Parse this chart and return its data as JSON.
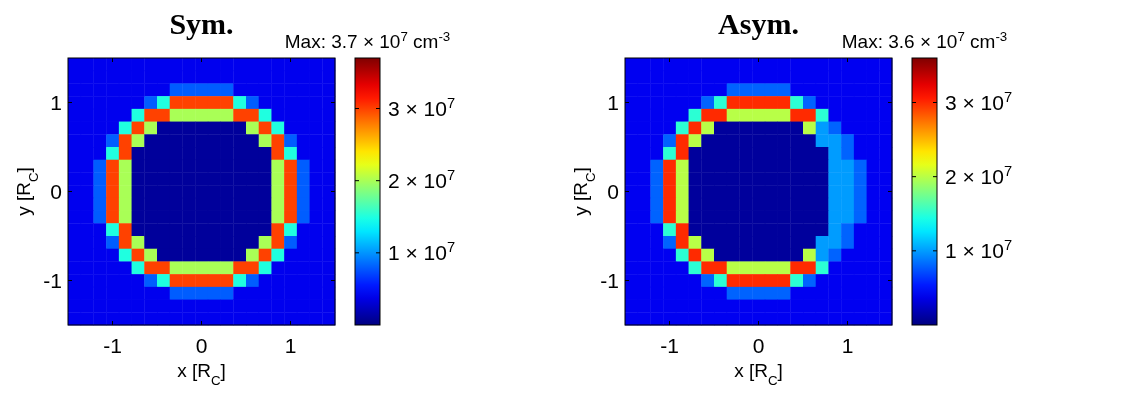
{
  "chart_data": [
    {
      "type": "heatmap",
      "title": "Sym.",
      "xlabel": "x [R$_{C}$]",
      "ylabel": "y [R$_{C}$]",
      "annotations": [
        "Max: 3.7 × 10$^{7}$ cm$^{-3}$"
      ],
      "categories": [
        null,
        null,
        null,
        "-1",
        null,
        null,
        null,
        null,
        null,
        null,
        "0",
        null,
        null,
        null,
        null,
        null,
        null,
        "1",
        null,
        null,
        null
      ],
      "y_categories": [
        null,
        null,
        null,
        "1",
        null,
        null,
        null,
        null,
        null,
        null,
        "0",
        null,
        null,
        null,
        null,
        null,
        null,
        "-1",
        null,
        null,
        null
      ],
      "clim": [
        0,
        37000000.0
      ],
      "cticks": [
        {
          "value": 10000000.0,
          "label": "1 × 10$^{7}$"
        },
        {
          "value": 20000000.0,
          "label": "2 × 10$^{7}$"
        },
        {
          "value": 30000000.0,
          "label": "3 × 10$^{7}$"
        }
      ],
      "cells": [
        [
          4000000.0,
          4000000.0,
          4000000.0,
          4000000.0,
          4000000.0,
          4000000.0,
          4000000.0,
          4000000.0,
          4000000.0,
          4000000.0,
          4000000.0,
          4000000.0,
          4000000.0,
          4000000.0,
          4000000.0,
          4000000.0,
          4000000.0,
          4000000.0,
          4000000.0,
          4000000.0,
          4000000.0
        ],
        [
          4000000.0,
          4000000.0,
          4000000.0,
          4000000.0,
          4000000.0,
          4000000.0,
          4000000.0,
          4000000.0,
          4000000.0,
          4000000.0,
          4000000.0,
          4000000.0,
          4000000.0,
          4000000.0,
          4000000.0,
          4000000.0,
          4000000.0,
          4000000.0,
          4000000.0,
          4000000.0,
          4000000.0
        ],
        [
          4000000.0,
          4000000.0,
          4000000.0,
          4000000.0,
          4000000.0,
          4000000.0,
          4000000.0,
          4000000.0,
          8000000.0,
          8000000.0,
          8000000.0,
          8000000.0,
          8000000.0,
          4000000.0,
          4000000.0,
          4000000.0,
          4000000.0,
          4000000.0,
          4000000.0,
          4000000.0,
          4000000.0
        ],
        [
          4000000.0,
          4000000.0,
          4000000.0,
          4000000.0,
          4000000.0,
          4000000.0,
          8000000.0,
          15000000.0,
          30000000.0,
          30000000.0,
          30000000.0,
          30000000.0,
          30000000.0,
          15000000.0,
          8000000.0,
          4000000.0,
          4000000.0,
          4000000.0,
          4000000.0,
          4000000.0,
          4000000.0
        ],
        [
          4000000.0,
          4000000.0,
          4000000.0,
          4000000.0,
          4000000.0,
          15000000.0,
          30000000.0,
          30000000.0,
          20000000.0,
          20000000.0,
          20000000.0,
          20000000.0,
          20000000.0,
          30000000.0,
          30000000.0,
          15000000.0,
          4000000.0,
          4000000.0,
          4000000.0,
          4000000.0,
          4000000.0
        ],
        [
          4000000.0,
          4000000.0,
          4000000.0,
          4000000.0,
          15000000.0,
          30000000.0,
          20000000.0,
          1000000.0,
          1000000.0,
          1000000.0,
          1000000.0,
          1000000.0,
          1000000.0,
          1000000.0,
          20000000.0,
          30000000.0,
          15000000.0,
          4000000.0,
          4000000.0,
          4000000.0,
          4000000.0
        ],
        [
          4000000.0,
          4000000.0,
          4000000.0,
          8000000.0,
          30000000.0,
          20000000.0,
          1000000.0,
          1000000.0,
          1000000.0,
          1000000.0,
          1000000.0,
          1000000.0,
          1000000.0,
          1000000.0,
          1000000.0,
          20000000.0,
          30000000.0,
          8000000.0,
          4000000.0,
          4000000.0,
          4000000.0
        ],
        [
          4000000.0,
          4000000.0,
          4000000.0,
          15000000.0,
          30000000.0,
          1000000.0,
          1000000.0,
          1000000.0,
          1000000.0,
          1000000.0,
          1000000.0,
          1000000.0,
          1000000.0,
          1000000.0,
          1000000.0,
          1000000.0,
          30000000.0,
          15000000.0,
          4000000.0,
          4000000.0,
          4000000.0
        ],
        [
          4000000.0,
          4000000.0,
          8000000.0,
          30000000.0,
          20000000.0,
          1000000.0,
          1000000.0,
          1000000.0,
          1000000.0,
          1000000.0,
          1000000.0,
          1000000.0,
          1000000.0,
          1000000.0,
          1000000.0,
          1000000.0,
          20000000.0,
          30000000.0,
          8000000.0,
          4000000.0,
          4000000.0
        ],
        [
          4000000.0,
          4000000.0,
          8000000.0,
          30000000.0,
          20000000.0,
          1000000.0,
          1000000.0,
          1000000.0,
          1000000.0,
          1000000.0,
          1000000.0,
          1000000.0,
          1000000.0,
          1000000.0,
          1000000.0,
          1000000.0,
          20000000.0,
          30000000.0,
          8000000.0,
          4000000.0,
          4000000.0
        ],
        [
          4000000.0,
          4000000.0,
          8000000.0,
          30000000.0,
          20000000.0,
          1000000.0,
          1000000.0,
          1000000.0,
          1000000.0,
          1000000.0,
          1000000.0,
          1000000.0,
          1000000.0,
          1000000.0,
          1000000.0,
          1000000.0,
          20000000.0,
          30000000.0,
          8000000.0,
          4000000.0,
          4000000.0
        ],
        [
          4000000.0,
          4000000.0,
          8000000.0,
          30000000.0,
          20000000.0,
          1000000.0,
          1000000.0,
          1000000.0,
          1000000.0,
          1000000.0,
          1000000.0,
          1000000.0,
          1000000.0,
          1000000.0,
          1000000.0,
          1000000.0,
          20000000.0,
          30000000.0,
          8000000.0,
          4000000.0,
          4000000.0
        ],
        [
          4000000.0,
          4000000.0,
          8000000.0,
          30000000.0,
          20000000.0,
          1000000.0,
          1000000.0,
          1000000.0,
          1000000.0,
          1000000.0,
          1000000.0,
          1000000.0,
          1000000.0,
          1000000.0,
          1000000.0,
          1000000.0,
          20000000.0,
          30000000.0,
          8000000.0,
          4000000.0,
          4000000.0
        ],
        [
          4000000.0,
          4000000.0,
          4000000.0,
          15000000.0,
          30000000.0,
          1000000.0,
          1000000.0,
          1000000.0,
          1000000.0,
          1000000.0,
          1000000.0,
          1000000.0,
          1000000.0,
          1000000.0,
          1000000.0,
          1000000.0,
          30000000.0,
          15000000.0,
          4000000.0,
          4000000.0,
          4000000.0
        ],
        [
          4000000.0,
          4000000.0,
          4000000.0,
          8000000.0,
          30000000.0,
          20000000.0,
          1000000.0,
          1000000.0,
          1000000.0,
          1000000.0,
          1000000.0,
          1000000.0,
          1000000.0,
          1000000.0,
          1000000.0,
          20000000.0,
          30000000.0,
          8000000.0,
          4000000.0,
          4000000.0,
          4000000.0
        ],
        [
          4000000.0,
          4000000.0,
          4000000.0,
          4000000.0,
          15000000.0,
          30000000.0,
          20000000.0,
          1000000.0,
          1000000.0,
          1000000.0,
          1000000.0,
          1000000.0,
          1000000.0,
          1000000.0,
          20000000.0,
          30000000.0,
          15000000.0,
          4000000.0,
          4000000.0,
          4000000.0,
          4000000.0
        ],
        [
          4000000.0,
          4000000.0,
          4000000.0,
          4000000.0,
          4000000.0,
          15000000.0,
          30000000.0,
          30000000.0,
          20000000.0,
          20000000.0,
          20000000.0,
          20000000.0,
          20000000.0,
          30000000.0,
          30000000.0,
          15000000.0,
          4000000.0,
          4000000.0,
          4000000.0,
          4000000.0,
          4000000.0
        ],
        [
          4000000.0,
          4000000.0,
          4000000.0,
          4000000.0,
          4000000.0,
          4000000.0,
          8000000.0,
          15000000.0,
          30000000.0,
          30000000.0,
          30000000.0,
          30000000.0,
          30000000.0,
          15000000.0,
          8000000.0,
          4000000.0,
          4000000.0,
          4000000.0,
          4000000.0,
          4000000.0,
          4000000.0
        ],
        [
          4000000.0,
          4000000.0,
          4000000.0,
          4000000.0,
          4000000.0,
          4000000.0,
          4000000.0,
          4000000.0,
          8000000.0,
          8000000.0,
          8000000.0,
          8000000.0,
          8000000.0,
          4000000.0,
          4000000.0,
          4000000.0,
          4000000.0,
          4000000.0,
          4000000.0,
          4000000.0,
          4000000.0
        ],
        [
          4000000.0,
          4000000.0,
          4000000.0,
          4000000.0,
          4000000.0,
          4000000.0,
          4000000.0,
          4000000.0,
          4000000.0,
          4000000.0,
          4000000.0,
          4000000.0,
          4000000.0,
          4000000.0,
          4000000.0,
          4000000.0,
          4000000.0,
          4000000.0,
          4000000.0,
          4000000.0,
          4000000.0
        ],
        [
          4000000.0,
          4000000.0,
          4000000.0,
          4000000.0,
          4000000.0,
          4000000.0,
          4000000.0,
          4000000.0,
          4000000.0,
          4000000.0,
          4000000.0,
          4000000.0,
          4000000.0,
          4000000.0,
          4000000.0,
          4000000.0,
          4000000.0,
          4000000.0,
          4000000.0,
          4000000.0,
          4000000.0
        ]
      ]
    },
    {
      "type": "heatmap",
      "title": "Asym.",
      "xlabel": "x [R$_{C}$]",
      "ylabel": "y [R$_{C}$]",
      "annotations": [
        "Max: 3.6 × 10$^{7}$ cm$^{-3}$"
      ],
      "categories": [
        null,
        null,
        null,
        "-1",
        null,
        null,
        null,
        null,
        null,
        null,
        "0",
        null,
        null,
        null,
        null,
        null,
        null,
        "1",
        null,
        null,
        null
      ],
      "y_categories": [
        null,
        null,
        null,
        "1",
        null,
        null,
        null,
        null,
        null,
        null,
        "0",
        null,
        null,
        null,
        null,
        null,
        null,
        "-1",
        null,
        null,
        null
      ],
      "clim": [
        0,
        36000000.0
      ],
      "cticks": [
        {
          "value": 10000000.0,
          "label": "1 × 10$^{7}$"
        },
        {
          "value": 20000000.0,
          "label": "2 × 10$^{7}$"
        },
        {
          "value": 30000000.0,
          "label": "3 × 10$^{7}$"
        }
      ],
      "cells": [
        [
          4000000.0,
          4000000.0,
          4000000.0,
          4000000.0,
          4000000.0,
          4000000.0,
          4000000.0,
          4000000.0,
          4000000.0,
          4000000.0,
          4000000.0,
          4000000.0,
          4000000.0,
          4000000.0,
          4000000.0,
          4000000.0,
          4000000.0,
          4000000.0,
          4000000.0,
          4000000.0,
          4000000.0
        ],
        [
          4000000.0,
          4000000.0,
          4000000.0,
          4000000.0,
          4000000.0,
          4000000.0,
          4000000.0,
          4000000.0,
          4000000.0,
          4000000.0,
          4000000.0,
          4000000.0,
          4000000.0,
          4000000.0,
          4000000.0,
          4000000.0,
          4000000.0,
          4000000.0,
          4000000.0,
          4000000.0,
          4000000.0
        ],
        [
          4000000.0,
          4000000.0,
          4000000.0,
          4000000.0,
          4000000.0,
          4000000.0,
          4000000.0,
          4000000.0,
          8000000.0,
          8000000.0,
          8000000.0,
          8000000.0,
          8000000.0,
          4000000.0,
          4000000.0,
          4000000.0,
          4000000.0,
          4000000.0,
          4000000.0,
          4000000.0,
          4000000.0
        ],
        [
          4000000.0,
          4000000.0,
          4000000.0,
          4000000.0,
          4000000.0,
          4000000.0,
          8000000.0,
          15000000.0,
          30000000.0,
          30000000.0,
          30000000.0,
          30000000.0,
          30000000.0,
          15000000.0,
          8000000.0,
          4000000.0,
          4000000.0,
          4000000.0,
          4000000.0,
          4000000.0,
          4000000.0
        ],
        [
          4000000.0,
          4000000.0,
          4000000.0,
          4000000.0,
          4000000.0,
          15000000.0,
          30000000.0,
          30000000.0,
          20000000.0,
          20000000.0,
          20000000.0,
          20000000.0,
          20000000.0,
          30000000.0,
          30000000.0,
          15000000.0,
          4000000.0,
          4000000.0,
          4000000.0,
          4000000.0,
          4000000.0
        ],
        [
          4000000.0,
          4000000.0,
          4000000.0,
          4000000.0,
          15000000.0,
          30000000.0,
          20000000.0,
          1000000.0,
          1000000.0,
          1000000.0,
          1000000.0,
          1000000.0,
          1000000.0,
          1000000.0,
          20000000.0,
          10000000.0,
          8000000.0,
          4000000.0,
          4000000.0,
          4000000.0,
          4000000.0
        ],
        [
          4000000.0,
          4000000.0,
          4000000.0,
          8000000.0,
          30000000.0,
          20000000.0,
          1000000.0,
          1000000.0,
          1000000.0,
          1000000.0,
          1000000.0,
          1000000.0,
          1000000.0,
          1000000.0,
          1000000.0,
          10000000.0,
          10000000.0,
          8000000.0,
          4000000.0,
          4000000.0,
          4000000.0
        ],
        [
          4000000.0,
          4000000.0,
          4000000.0,
          15000000.0,
          30000000.0,
          1000000.0,
          1000000.0,
          1000000.0,
          1000000.0,
          1000000.0,
          1000000.0,
          1000000.0,
          1000000.0,
          1000000.0,
          1000000.0,
          1000000.0,
          10000000.0,
          8000000.0,
          4000000.0,
          4000000.0,
          4000000.0
        ],
        [
          4000000.0,
          4000000.0,
          8000000.0,
          30000000.0,
          20000000.0,
          1000000.0,
          1000000.0,
          1000000.0,
          1000000.0,
          1000000.0,
          1000000.0,
          1000000.0,
          1000000.0,
          1000000.0,
          1000000.0,
          1000000.0,
          10000000.0,
          10000000.0,
          8000000.0,
          4000000.0,
          4000000.0
        ],
        [
          4000000.0,
          4000000.0,
          8000000.0,
          30000000.0,
          20000000.0,
          1000000.0,
          1000000.0,
          1000000.0,
          1000000.0,
          1000000.0,
          1000000.0,
          1000000.0,
          1000000.0,
          1000000.0,
          1000000.0,
          1000000.0,
          10000000.0,
          10000000.0,
          8000000.0,
          4000000.0,
          4000000.0
        ],
        [
          4000000.0,
          4000000.0,
          8000000.0,
          30000000.0,
          20000000.0,
          1000000.0,
          1000000.0,
          1000000.0,
          1000000.0,
          1000000.0,
          1000000.0,
          1000000.0,
          1000000.0,
          1000000.0,
          1000000.0,
          1000000.0,
          10000000.0,
          10000000.0,
          8000000.0,
          4000000.0,
          4000000.0
        ],
        [
          4000000.0,
          4000000.0,
          8000000.0,
          30000000.0,
          20000000.0,
          1000000.0,
          1000000.0,
          1000000.0,
          1000000.0,
          1000000.0,
          1000000.0,
          1000000.0,
          1000000.0,
          1000000.0,
          1000000.0,
          1000000.0,
          10000000.0,
          10000000.0,
          8000000.0,
          4000000.0,
          4000000.0
        ],
        [
          4000000.0,
          4000000.0,
          8000000.0,
          30000000.0,
          20000000.0,
          1000000.0,
          1000000.0,
          1000000.0,
          1000000.0,
          1000000.0,
          1000000.0,
          1000000.0,
          1000000.0,
          1000000.0,
          1000000.0,
          1000000.0,
          10000000.0,
          10000000.0,
          8000000.0,
          4000000.0,
          4000000.0
        ],
        [
          4000000.0,
          4000000.0,
          4000000.0,
          15000000.0,
          30000000.0,
          1000000.0,
          1000000.0,
          1000000.0,
          1000000.0,
          1000000.0,
          1000000.0,
          1000000.0,
          1000000.0,
          1000000.0,
          1000000.0,
          1000000.0,
          10000000.0,
          8000000.0,
          4000000.0,
          4000000.0,
          4000000.0
        ],
        [
          4000000.0,
          4000000.0,
          4000000.0,
          8000000.0,
          30000000.0,
          20000000.0,
          1000000.0,
          1000000.0,
          1000000.0,
          1000000.0,
          1000000.0,
          1000000.0,
          1000000.0,
          1000000.0,
          1000000.0,
          10000000.0,
          10000000.0,
          8000000.0,
          4000000.0,
          4000000.0,
          4000000.0
        ],
        [
          4000000.0,
          4000000.0,
          4000000.0,
          4000000.0,
          15000000.0,
          30000000.0,
          20000000.0,
          1000000.0,
          1000000.0,
          1000000.0,
          1000000.0,
          1000000.0,
          1000000.0,
          1000000.0,
          20000000.0,
          10000000.0,
          8000000.0,
          4000000.0,
          4000000.0,
          4000000.0,
          4000000.0
        ],
        [
          4000000.0,
          4000000.0,
          4000000.0,
          4000000.0,
          4000000.0,
          15000000.0,
          30000000.0,
          30000000.0,
          20000000.0,
          20000000.0,
          20000000.0,
          20000000.0,
          20000000.0,
          30000000.0,
          30000000.0,
          15000000.0,
          4000000.0,
          4000000.0,
          4000000.0,
          4000000.0,
          4000000.0
        ],
        [
          4000000.0,
          4000000.0,
          4000000.0,
          4000000.0,
          4000000.0,
          4000000.0,
          8000000.0,
          15000000.0,
          30000000.0,
          30000000.0,
          30000000.0,
          30000000.0,
          30000000.0,
          15000000.0,
          8000000.0,
          4000000.0,
          4000000.0,
          4000000.0,
          4000000.0,
          4000000.0,
          4000000.0
        ],
        [
          4000000.0,
          4000000.0,
          4000000.0,
          4000000.0,
          4000000.0,
          4000000.0,
          4000000.0,
          4000000.0,
          8000000.0,
          8000000.0,
          8000000.0,
          8000000.0,
          8000000.0,
          4000000.0,
          4000000.0,
          4000000.0,
          4000000.0,
          4000000.0,
          4000000.0,
          4000000.0,
          4000000.0
        ],
        [
          4000000.0,
          4000000.0,
          4000000.0,
          4000000.0,
          4000000.0,
          4000000.0,
          4000000.0,
          4000000.0,
          4000000.0,
          4000000.0,
          4000000.0,
          4000000.0,
          4000000.0,
          4000000.0,
          4000000.0,
          4000000.0,
          4000000.0,
          4000000.0,
          4000000.0,
          4000000.0,
          4000000.0
        ],
        [
          4000000.0,
          4000000.0,
          4000000.0,
          4000000.0,
          4000000.0,
          4000000.0,
          4000000.0,
          4000000.0,
          4000000.0,
          4000000.0,
          4000000.0,
          4000000.0,
          4000000.0,
          4000000.0,
          4000000.0,
          4000000.0,
          4000000.0,
          4000000.0,
          4000000.0,
          4000000.0,
          4000000.0
        ]
      ]
    }
  ]
}
